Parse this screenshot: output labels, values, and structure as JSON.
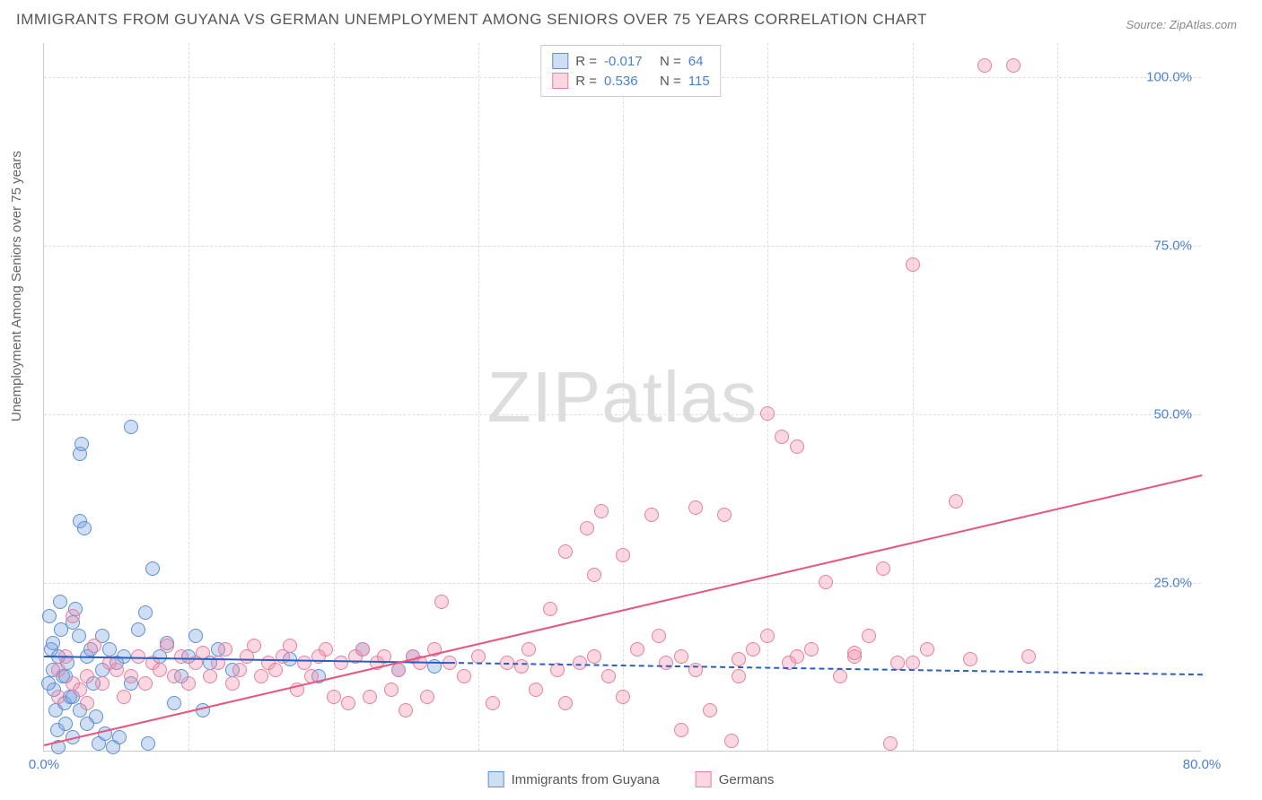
{
  "title": "IMMIGRANTS FROM GUYANA VS GERMAN UNEMPLOYMENT AMONG SENIORS OVER 75 YEARS CORRELATION CHART",
  "source": "Source: ZipAtlas.com",
  "ylabel": "Unemployment Among Seniors over 75 years",
  "watermark_a": "ZIP",
  "watermark_b": "atlas",
  "chart": {
    "type": "scatter",
    "xlim": [
      0,
      80
    ],
    "ylim": [
      0,
      105
    ],
    "xticks": [
      {
        "v": 0,
        "l": "0.0%"
      },
      {
        "v": 80,
        "l": "80.0%"
      }
    ],
    "yticks": [
      {
        "v": 25,
        "l": "25.0%"
      },
      {
        "v": 50,
        "l": "50.0%"
      },
      {
        "v": 75,
        "l": "75.0%"
      },
      {
        "v": 100,
        "l": "100.0%"
      }
    ],
    "xgrid": [
      10,
      20,
      30,
      40,
      50,
      60,
      70
    ],
    "ygrid": [
      25,
      50,
      75,
      100
    ],
    "background": "#ffffff",
    "grid_color": "#dddddd",
    "axis_color": "#cccccc",
    "tick_color": "#4a7fd8",
    "marker_radius": 8,
    "series": [
      {
        "name": "Immigrants from Guyana",
        "fill": "rgba(120,160,220,0.35)",
        "stroke": "#5d8fd6",
        "line_color": "#2a5fc0",
        "line_width": 2.5,
        "line_dash_after_x": 28,
        "trend": {
          "x1": 0,
          "y1": 14.2,
          "x2": 80,
          "y2": 11.5
        },
        "R": "-0.017",
        "N": "64",
        "points": [
          [
            0.4,
            20
          ],
          [
            0.5,
            15
          ],
          [
            0.6,
            12
          ],
          [
            0.7,
            9
          ],
          [
            0.8,
            6
          ],
          [
            0.9,
            3
          ],
          [
            1.0,
            0.5
          ],
          [
            1.1,
            22
          ],
          [
            1.2,
            18
          ],
          [
            1.3,
            11
          ],
          [
            1.4,
            7
          ],
          [
            1.5,
            4
          ],
          [
            1.6,
            13
          ],
          [
            1.8,
            8
          ],
          [
            2.0,
            19
          ],
          [
            2.0,
            2
          ],
          [
            2.2,
            21
          ],
          [
            2.4,
            17
          ],
          [
            2.5,
            44
          ],
          [
            2.5,
            34
          ],
          [
            2.6,
            45.5
          ],
          [
            2.8,
            33
          ],
          [
            3.0,
            14
          ],
          [
            3.2,
            15
          ],
          [
            3.4,
            10
          ],
          [
            3.6,
            5
          ],
          [
            3.8,
            1
          ],
          [
            4.0,
            17
          ],
          [
            4.0,
            12
          ],
          [
            4.2,
            2.5
          ],
          [
            4.5,
            15
          ],
          [
            4.8,
            0.5
          ],
          [
            5.0,
            13
          ],
          [
            5.2,
            2
          ],
          [
            5.5,
            14
          ],
          [
            6.0,
            10
          ],
          [
            6.0,
            48
          ],
          [
            6.5,
            18
          ],
          [
            7.0,
            20.5
          ],
          [
            7.2,
            1
          ],
          [
            7.5,
            27
          ],
          [
            8.0,
            14
          ],
          [
            8.5,
            16
          ],
          [
            9.0,
            7
          ],
          [
            9.5,
            11
          ],
          [
            10.0,
            14
          ],
          [
            10.5,
            17
          ],
          [
            11.0,
            6
          ],
          [
            11.5,
            13
          ],
          [
            12.0,
            15
          ],
          [
            13.0,
            12
          ],
          [
            17.0,
            13.5
          ],
          [
            19.0,
            11
          ],
          [
            22.0,
            15
          ],
          [
            24.5,
            12
          ],
          [
            25.5,
            14
          ],
          [
            27.0,
            12.5
          ],
          [
            0.3,
            10
          ],
          [
            0.6,
            16
          ],
          [
            1.0,
            14
          ],
          [
            1.5,
            11
          ],
          [
            2.0,
            8
          ],
          [
            2.5,
            6
          ],
          [
            3.0,
            4
          ]
        ]
      },
      {
        "name": "Germans",
        "fill": "rgba(240,140,170,0.35)",
        "stroke": "#e6809f",
        "line_color": "#e6567f",
        "line_width": 2.5,
        "trend": {
          "x1": 0,
          "y1": 1,
          "x2": 80,
          "y2": 41
        },
        "R": "0.536",
        "N": "115",
        "points": [
          [
            1,
            8
          ],
          [
            1,
            12
          ],
          [
            1.5,
            14
          ],
          [
            2,
            10
          ],
          [
            2,
            20
          ],
          [
            2.5,
            9
          ],
          [
            3,
            11
          ],
          [
            3,
            7
          ],
          [
            3.5,
            15.5
          ],
          [
            4,
            10
          ],
          [
            4.5,
            13
          ],
          [
            5,
            12
          ],
          [
            5.5,
            8
          ],
          [
            6,
            11
          ],
          [
            6.5,
            14
          ],
          [
            7,
            10
          ],
          [
            7.5,
            13
          ],
          [
            8,
            12
          ],
          [
            8.5,
            15.5
          ],
          [
            9,
            11
          ],
          [
            9.5,
            14
          ],
          [
            10,
            10
          ],
          [
            10.5,
            13
          ],
          [
            11,
            14.5
          ],
          [
            11.5,
            11
          ],
          [
            12,
            13
          ],
          [
            12.5,
            15
          ],
          [
            13,
            10
          ],
          [
            13.5,
            12
          ],
          [
            14,
            14
          ],
          [
            14.5,
            15.5
          ],
          [
            15,
            11
          ],
          [
            15.5,
            13
          ],
          [
            16,
            12
          ],
          [
            16.5,
            14
          ],
          [
            17,
            15.5
          ],
          [
            17.5,
            9
          ],
          [
            18,
            13
          ],
          [
            18.5,
            11
          ],
          [
            19,
            14
          ],
          [
            19.5,
            15
          ],
          [
            20,
            8
          ],
          [
            20.5,
            13
          ],
          [
            21,
            7
          ],
          [
            21.5,
            14
          ],
          [
            22,
            15
          ],
          [
            22.5,
            8
          ],
          [
            23,
            13
          ],
          [
            23.5,
            14
          ],
          [
            24,
            9
          ],
          [
            24.5,
            12
          ],
          [
            25,
            6
          ],
          [
            25.5,
            14
          ],
          [
            26,
            13
          ],
          [
            26.5,
            8
          ],
          [
            27,
            15
          ],
          [
            27.5,
            22
          ],
          [
            28,
            13
          ],
          [
            29,
            11
          ],
          [
            30,
            14
          ],
          [
            31,
            7
          ],
          [
            32,
            13
          ],
          [
            33,
            12.5
          ],
          [
            33.5,
            15
          ],
          [
            34,
            9
          ],
          [
            35,
            21
          ],
          [
            35.5,
            12
          ],
          [
            36,
            7
          ],
          [
            36,
            29.5
          ],
          [
            37,
            13
          ],
          [
            37.5,
            33
          ],
          [
            38,
            14
          ],
          [
            38,
            26
          ],
          [
            38.5,
            35.5
          ],
          [
            39,
            11
          ],
          [
            40,
            8
          ],
          [
            40,
            29
          ],
          [
            41,
            15
          ],
          [
            42,
            35
          ],
          [
            42.5,
            17
          ],
          [
            43,
            13
          ],
          [
            44,
            3
          ],
          [
            45,
            36
          ],
          [
            45,
            12
          ],
          [
            46,
            6
          ],
          [
            47,
            35
          ],
          [
            47.5,
            1.5
          ],
          [
            48,
            11
          ],
          [
            49,
            15
          ],
          [
            50,
            17
          ],
          [
            50,
            50
          ],
          [
            51,
            46.5
          ],
          [
            51.5,
            13
          ],
          [
            52,
            45
          ],
          [
            53,
            15
          ],
          [
            54,
            25
          ],
          [
            55,
            11
          ],
          [
            56,
            14
          ],
          [
            57,
            17
          ],
          [
            58,
            27
          ],
          [
            59,
            13
          ],
          [
            60,
            72
          ],
          [
            61,
            15
          ],
          [
            63,
            37
          ],
          [
            64,
            13.5
          ],
          [
            65,
            101.5
          ],
          [
            67,
            101.5
          ],
          [
            68,
            14
          ],
          [
            58.5,
            1
          ],
          [
            44,
            14
          ],
          [
            48,
            13.5
          ],
          [
            52,
            14
          ],
          [
            56,
            14.5
          ],
          [
            60,
            13
          ]
        ]
      }
    ]
  },
  "legend_top": {
    "rows": [
      {
        "swatch_fill": "rgba(120,160,220,0.35)",
        "swatch_stroke": "#5d8fd6",
        "R": "-0.017",
        "N": "64"
      },
      {
        "swatch_fill": "rgba(240,140,170,0.35)",
        "swatch_stroke": "#e6809f",
        "R": "0.536",
        "N": "115"
      }
    ]
  },
  "legend_bottom": {
    "items": [
      {
        "swatch_fill": "rgba(120,160,220,0.35)",
        "swatch_stroke": "#5d8fd6",
        "label": "Immigrants from Guyana"
      },
      {
        "swatch_fill": "rgba(240,140,170,0.35)",
        "swatch_stroke": "#e6809f",
        "label": "Germans"
      }
    ]
  }
}
